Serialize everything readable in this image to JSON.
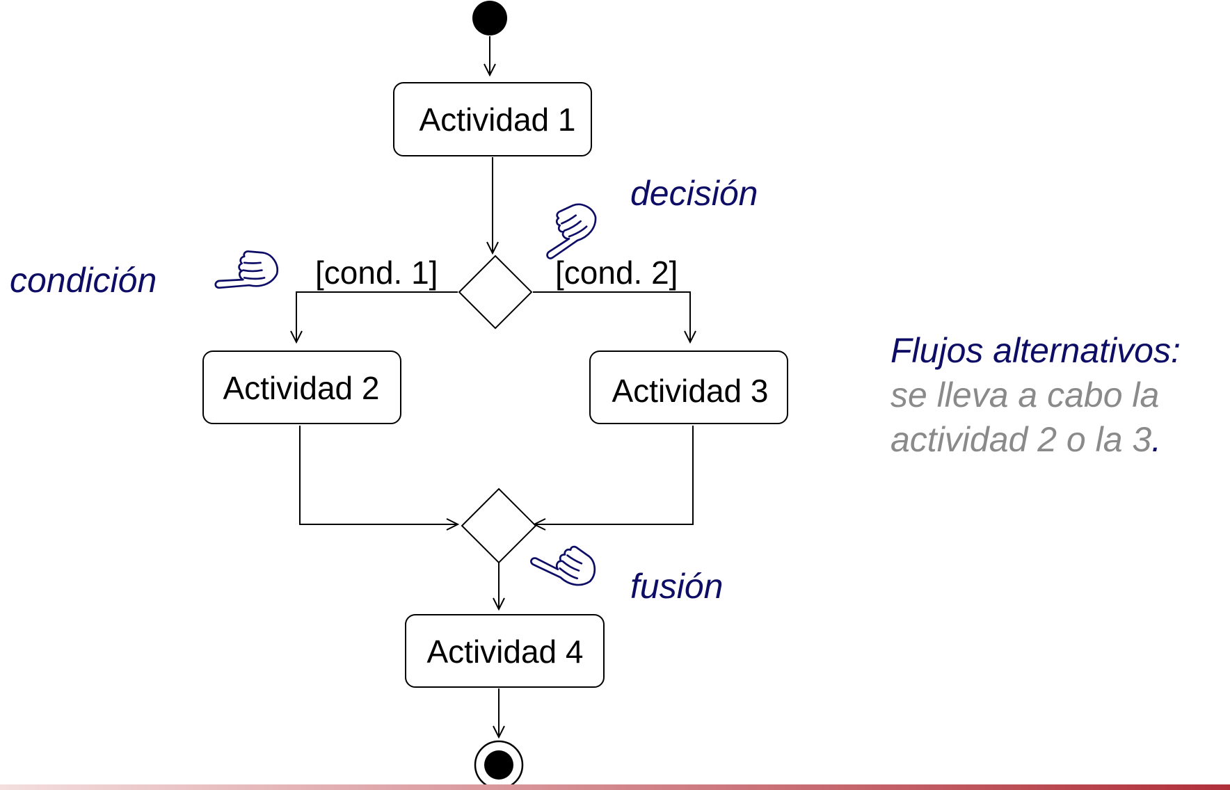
{
  "nodes": {
    "actividad_1": "Actividad 1",
    "actividad_2": "Actividad 2",
    "actividad_3": "Actividad 3",
    "actividad_4": "Actividad 4"
  },
  "guards": {
    "cond_1": "[cond. 1]",
    "cond_2": "[cond. 2]"
  },
  "annotations": {
    "decision": "decisión",
    "condicion": "condición",
    "fusion": "fusión"
  },
  "side_note": {
    "title": "Flujos alternativos:",
    "line_1": "se lleva a cabo la",
    "line_2": "actividad 2 o la 3",
    "period": "."
  },
  "icons": {
    "pointer": "pointing-hand-icon"
  },
  "colors": {
    "annotation": "#0d0d66",
    "side_text": "#8a8a8a",
    "bottom_bar": "#b0303a"
  }
}
